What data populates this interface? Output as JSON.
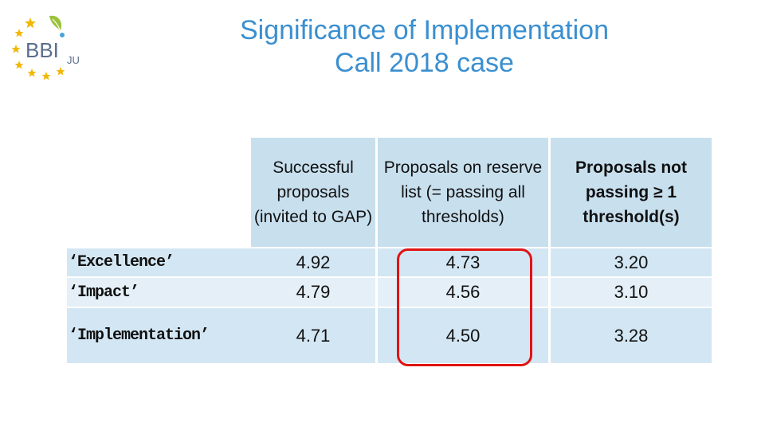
{
  "title": {
    "line1": "Significance of Implementation",
    "line2": "Call 2018 case"
  },
  "logo": {
    "text": "BBI",
    "suffix": "JU",
    "star_color": "#f2b705",
    "text_color": "#5a6e8c"
  },
  "table": {
    "headers": {
      "col1": "",
      "col2": "Successful proposals (invited to GAP)",
      "col3": "Proposals on reserve list (= passing all thresholds)",
      "col4": "Proposals not passing ≥ 1 threshold(s)"
    },
    "rows": [
      {
        "label": "‘Excellence’",
        "successful": "4.92",
        "reserve": "4.73",
        "not_passing": "3.20"
      },
      {
        "label": "‘Impact’",
        "successful": "4.79",
        "reserve": "4.56",
        "not_passing": "3.10"
      },
      {
        "label": "‘Implementation’",
        "successful": "4.71",
        "reserve": "4.50",
        "not_passing": "3.28"
      }
    ]
  },
  "colors": {
    "title": "#3a8fd0",
    "header_bg": "#c8dfee",
    "row_bg_dark": "#d3e6f3",
    "row_bg_light": "#e4eff8",
    "highlight": "#e01414"
  }
}
